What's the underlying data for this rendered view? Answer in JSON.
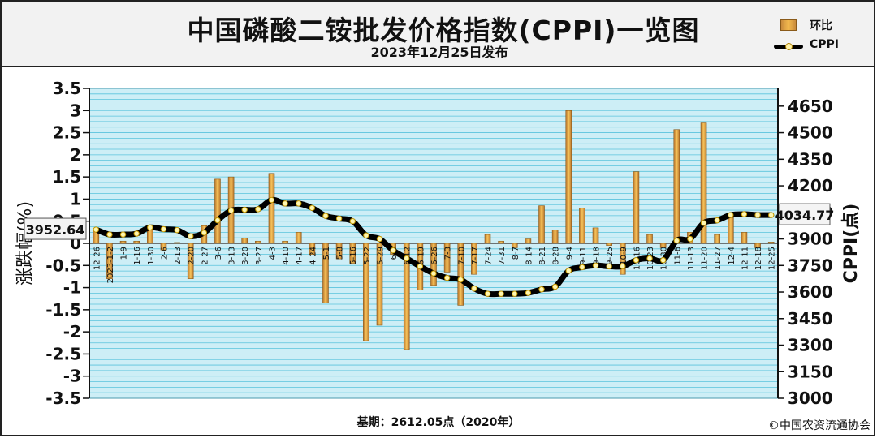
{
  "header": {
    "title": "中国磷酸二铵批发价格指数(CPPI)一览图",
    "subtitle": "2023年12月25日发布"
  },
  "legend": {
    "items": [
      {
        "label": "环比",
        "kind": "bar"
      },
      {
        "label": "CPPI",
        "kind": "line"
      }
    ]
  },
  "footer": {
    "base": "基期：2612.05点（2020年）",
    "copyright": "©中国农资流通协会"
  },
  "annotations": {
    "start_value": "3952.64",
    "end_value": "4034.77"
  },
  "chart_data": {
    "type": "bar",
    "title": "中国磷酸二铵批发价格指数(CPPI)一览图",
    "subtitle": "2023年12月25日发布",
    "ylabel": "涨跌幅(%)",
    "y2label": "CPPI(点)",
    "ylim": [
      -3.5,
      3.5
    ],
    "y2lim": [
      3000,
      4750
    ],
    "yticks": [
      "3.5",
      "3",
      "2.5",
      "2",
      "1.5",
      "1",
      "0.5",
      "0",
      "-0.5",
      "-1",
      "-1.5",
      "-2",
      "-2.5",
      "-3",
      "-3.5"
    ],
    "y2ticks": [
      "4650",
      "4500",
      "4350",
      "4200",
      "4050",
      "3900",
      "3750",
      "3600",
      "3450",
      "3300",
      "3150",
      "3000"
    ],
    "grid": true,
    "legend_position": "top-right",
    "categories": [
      "12-26",
      "2023-1-2",
      "1-9",
      "1-16",
      "1-30",
      "2-6",
      "2-13",
      "2-20",
      "2-27",
      "3-6",
      "3-13",
      "3-20",
      "3-27",
      "4-3",
      "4-10",
      "4-17",
      "4-24",
      "5-1",
      "5-8",
      "5-16",
      "5-22",
      "5-29",
      "6-5",
      "6-12",
      "6-19",
      "6-26",
      "7-3",
      "7-10",
      "7-17",
      "7-24",
      "7-31",
      "8-7",
      "8-14",
      "8-21",
      "8-28",
      "9-4",
      "9-11",
      "9-18",
      "9-25",
      "10-9",
      "10-16",
      "10-23",
      "10-30",
      "11-6",
      "11-13",
      "11-20",
      "11-27",
      "12-4",
      "12-11",
      "12-18",
      "12-25"
    ],
    "series": [
      {
        "name": "环比",
        "type": "bar",
        "values": [
          0.3,
          -0.8,
          0.05,
          0.05,
          0.4,
          -0.15,
          0.02,
          -0.8,
          0.4,
          1.45,
          1.5,
          0.12,
          0.05,
          1.58,
          0.05,
          0.25,
          -0.25,
          -1.35,
          -0.35,
          -0.45,
          -2.2,
          -1.85,
          -0.25,
          -2.4,
          -1.05,
          -0.95,
          -0.65,
          -1.4,
          -0.7,
          0.2,
          0.05,
          -0.1,
          0.1,
          0.85,
          0.3,
          3.0,
          0.8,
          0.35,
          -0.05,
          -0.7,
          1.62,
          0.2,
          -0.1,
          2.57,
          0.25,
          2.72,
          0.2,
          0.6,
          0.25,
          -0.1,
          0.03
        ]
      },
      {
        "name": "CPPI",
        "type": "line",
        "values": [
          3952.64,
          3925,
          3925,
          3930,
          3965,
          3955,
          3950,
          3915,
          3935,
          4005,
          4060,
          4065,
          4068,
          4120,
          4100,
          4100,
          4075,
          4030,
          4015,
          4000,
          3920,
          3900,
          3835,
          3790,
          3745,
          3705,
          3680,
          3670,
          3620,
          3590,
          3590,
          3590,
          3595,
          3615,
          3630,
          3720,
          3740,
          3750,
          3745,
          3745,
          3780,
          3790,
          3780,
          3890,
          3900,
          3990,
          4005,
          4035,
          4040,
          4035,
          4034.77
        ]
      }
    ]
  }
}
